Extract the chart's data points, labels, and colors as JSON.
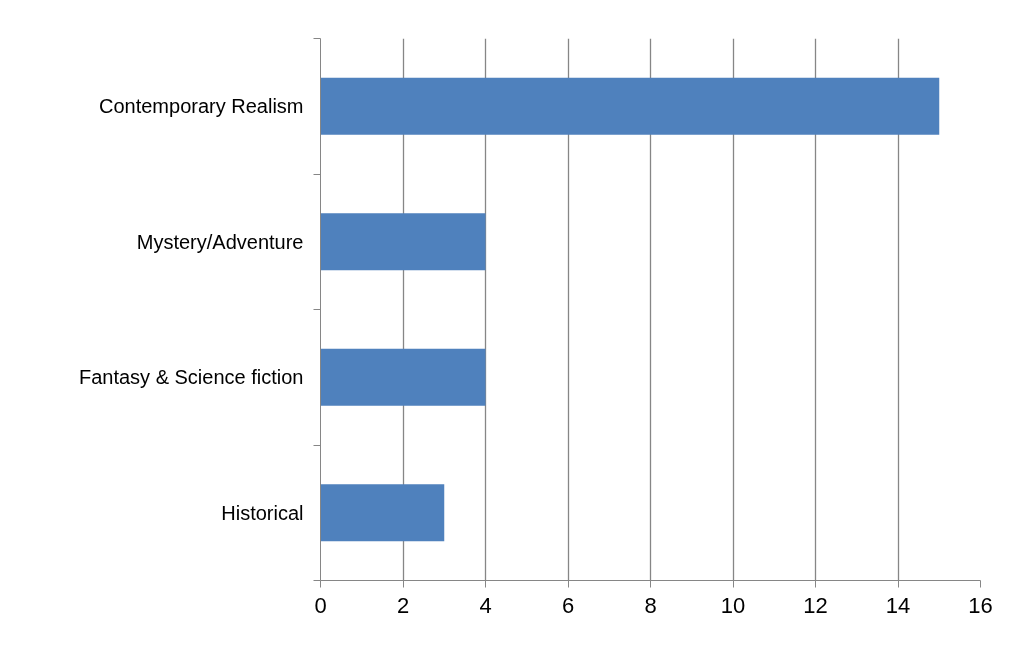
{
  "chart_data": {
    "type": "bar",
    "orientation": "horizontal",
    "categories": [
      "Contemporary Realism",
      "Mystery/Adventure",
      "Fantasy & Science fiction",
      "Historical"
    ],
    "values": [
      15,
      4,
      4,
      3
    ],
    "color": "#4f81bd",
    "xlim": [
      0,
      16
    ],
    "xticks": [
      0,
      2,
      4,
      6,
      8,
      10,
      12,
      14,
      16
    ],
    "grid": "x"
  }
}
